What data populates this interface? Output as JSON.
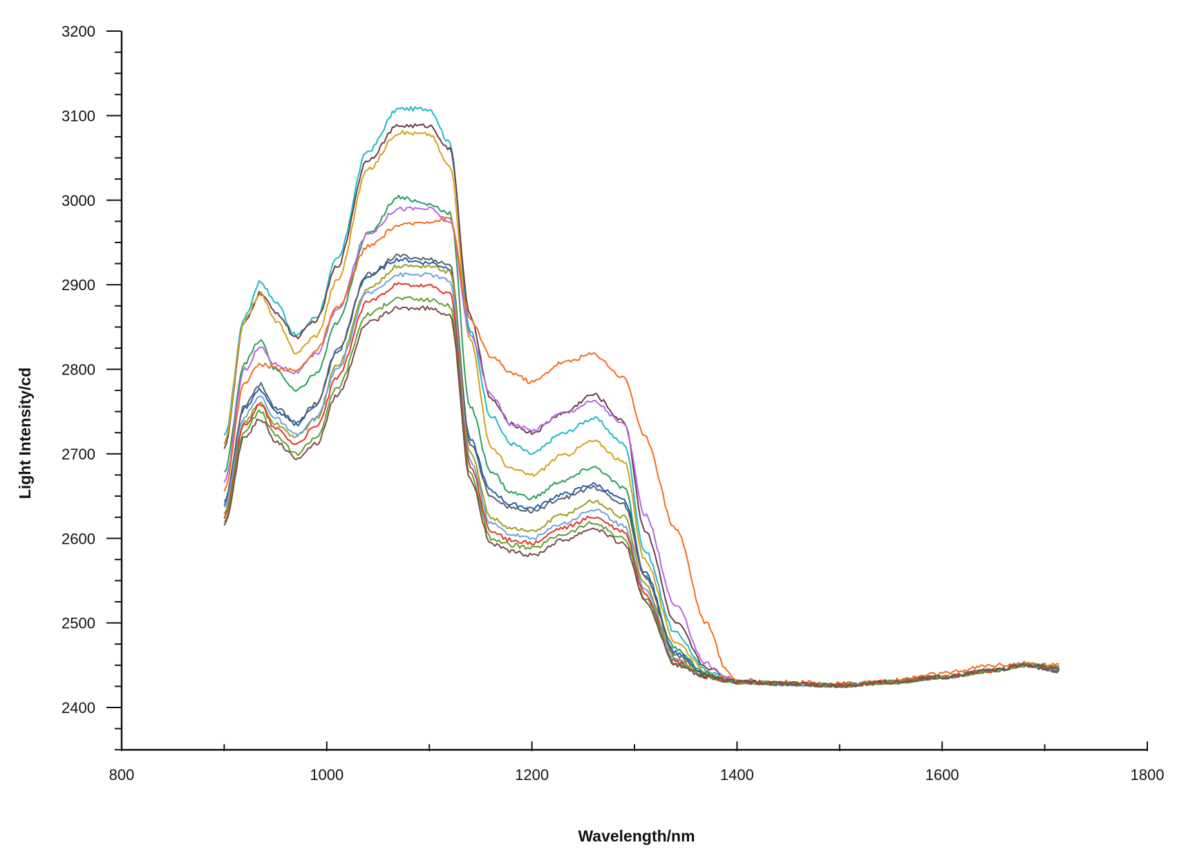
{
  "chart_data": {
    "type": "line",
    "title": "",
    "xlabel": "Wavelength/nm",
    "ylabel": "Light Intensity/cd",
    "xlim": [
      800,
      1800
    ],
    "ylim": [
      2350,
      3200
    ],
    "x_ticks": [
      800,
      1000,
      1200,
      1400,
      1600,
      1800
    ],
    "y_ticks": [
      2400,
      2500,
      2600,
      2700,
      2800,
      2900,
      3000,
      3100,
      3200
    ],
    "x_minor_step": 100,
    "y_minor_step": 25,
    "grid": false,
    "legend": "none",
    "x": [
      900,
      920,
      935,
      950,
      970,
      990,
      1010,
      1040,
      1070,
      1100,
      1120,
      1140,
      1160,
      1180,
      1200,
      1230,
      1260,
      1290,
      1310,
      1340,
      1370,
      1390,
      1400,
      1450,
      1500,
      1550,
      1600,
      1650,
      1680,
      1715
    ],
    "series": [
      {
        "color": "#1ab9c6",
        "values": [
          2720,
          2862,
          2904,
          2880,
          2840,
          2862,
          2930,
          3058,
          3108,
          3108,
          3068,
          2845,
          2745,
          2712,
          2700,
          2724,
          2742,
          2712,
          2585,
          2488,
          2444,
          2434,
          2430,
          2428,
          2426,
          2430,
          2436,
          2444,
          2450,
          2447
        ]
      },
      {
        "color": "#6b3a4a",
        "values": [
          2708,
          2855,
          2890,
          2868,
          2838,
          2858,
          2922,
          3048,
          3088,
          3088,
          3060,
          2862,
          2765,
          2735,
          2725,
          2748,
          2770,
          2738,
          2610,
          2500,
          2448,
          2436,
          2430,
          2428,
          2426,
          2430,
          2436,
          2444,
          2450,
          2447
        ]
      },
      {
        "color": "#d4a017",
        "values": [
          2712,
          2858,
          2890,
          2858,
          2820,
          2840,
          2905,
          3036,
          3080,
          3078,
          3040,
          2835,
          2708,
          2682,
          2675,
          2698,
          2715,
          2690,
          2575,
          2478,
          2442,
          2434,
          2430,
          2428,
          2426,
          2430,
          2436,
          2444,
          2450,
          2447
        ]
      },
      {
        "color": "#2a9d5c",
        "values": [
          2678,
          2808,
          2834,
          2800,
          2774,
          2795,
          2855,
          2960,
          3004,
          2995,
          2985,
          2755,
          2680,
          2654,
          2648,
          2668,
          2684,
          2660,
          2555,
          2470,
          2440,
          2433,
          2430,
          2428,
          2426,
          2430,
          2436,
          2444,
          2450,
          2447
        ]
      },
      {
        "color": "#b266e0",
        "values": [
          2665,
          2800,
          2826,
          2806,
          2796,
          2818,
          2870,
          2960,
          2990,
          2990,
          2975,
          2842,
          2770,
          2735,
          2728,
          2748,
          2762,
          2735,
          2628,
          2520,
          2452,
          2436,
          2430,
          2428,
          2426,
          2430,
          2436,
          2444,
          2450,
          2447
        ]
      },
      {
        "color": "#f26b1d",
        "values": [
          2658,
          2785,
          2806,
          2802,
          2798,
          2822,
          2872,
          2945,
          2970,
          2975,
          2978,
          2858,
          2815,
          2796,
          2785,
          2808,
          2818,
          2790,
          2720,
          2612,
          2500,
          2444,
          2432,
          2430,
          2428,
          2432,
          2440,
          2450,
          2452,
          2450
        ]
      },
      {
        "color": "#1f5faa",
        "values": [
          2640,
          2755,
          2776,
          2750,
          2735,
          2758,
          2820,
          2910,
          2930,
          2926,
          2920,
          2716,
          2656,
          2640,
          2636,
          2652,
          2664,
          2645,
          2560,
          2465,
          2438,
          2432,
          2430,
          2428,
          2426,
          2430,
          2436,
          2444,
          2450,
          2443
        ]
      },
      {
        "color": "#555e70",
        "values": [
          2644,
          2758,
          2782,
          2755,
          2738,
          2760,
          2822,
          2912,
          2934,
          2930,
          2924,
          2712,
          2650,
          2636,
          2632,
          2648,
          2660,
          2640,
          2556,
          2462,
          2438,
          2432,
          2430,
          2428,
          2426,
          2430,
          2436,
          2444,
          2450,
          2443
        ]
      },
      {
        "color": "#9c9c1a",
        "values": [
          2628,
          2738,
          2760,
          2735,
          2720,
          2742,
          2805,
          2895,
          2922,
          2922,
          2915,
          2700,
          2625,
          2612,
          2608,
          2628,
          2644,
          2625,
          2545,
          2458,
          2436,
          2432,
          2430,
          2428,
          2426,
          2430,
          2436,
          2444,
          2450,
          2447
        ]
      },
      {
        "color": "#6da0dc",
        "values": [
          2635,
          2745,
          2768,
          2742,
          2722,
          2742,
          2800,
          2890,
          2912,
          2912,
          2905,
          2692,
          2618,
          2605,
          2600,
          2618,
          2634,
          2615,
          2540,
          2456,
          2436,
          2432,
          2430,
          2428,
          2426,
          2430,
          2436,
          2444,
          2450,
          2447
        ]
      },
      {
        "color": "#e0322a",
        "values": [
          2625,
          2735,
          2758,
          2730,
          2712,
          2732,
          2790,
          2880,
          2900,
          2898,
          2890,
          2685,
          2608,
          2598,
          2594,
          2612,
          2625,
          2608,
          2535,
          2454,
          2436,
          2432,
          2430,
          2428,
          2426,
          2430,
          2436,
          2444,
          2450,
          2447
        ]
      },
      {
        "color": "#5aa02c",
        "values": [
          2620,
          2728,
          2750,
          2722,
          2700,
          2720,
          2778,
          2865,
          2884,
          2882,
          2875,
          2676,
          2600,
          2592,
          2588,
          2605,
          2618,
          2600,
          2530,
          2452,
          2436,
          2432,
          2430,
          2428,
          2426,
          2430,
          2436,
          2444,
          2450,
          2447
        ]
      },
      {
        "color": "#7a4a48",
        "values": [
          2615,
          2720,
          2742,
          2715,
          2695,
          2712,
          2770,
          2855,
          2872,
          2872,
          2865,
          2670,
          2594,
          2584,
          2580,
          2598,
          2612,
          2594,
          2526,
          2450,
          2436,
          2432,
          2430,
          2428,
          2426,
          2430,
          2436,
          2444,
          2450,
          2447
        ]
      }
    ]
  }
}
